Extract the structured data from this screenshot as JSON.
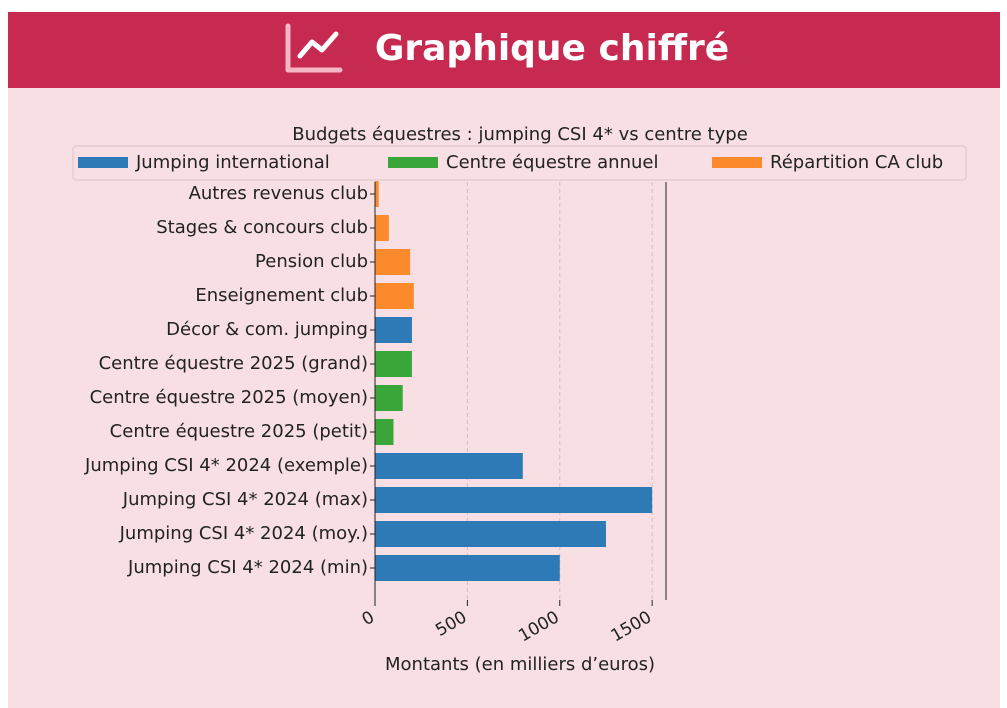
{
  "header": {
    "title": "Graphique chiffré"
  },
  "chart_data": {
    "type": "barh",
    "title": "Budgets équestres : jumping CSI 4* vs centre type",
    "xlabel": "Montants (en milliers d’euros)",
    "categories": [
      "Jumping CSI 4* 2024 (min)",
      "Jumping CSI 4* 2024 (moy.)",
      "Jumping CSI 4* 2024 (max)",
      "Jumping CSI 4* 2024 (exemple)",
      "Centre équestre 2025 (petit)",
      "Centre équestre 2025 (moyen)",
      "Centre équestre 2025 (grand)",
      "Décor & com. jumping",
      "Enseignement club",
      "Pension club",
      "Stages & concours club",
      "Autres revenus club"
    ],
    "series": [
      {
        "name": "Jumping international",
        "color": "#2e7ab6",
        "values": [
          1000,
          1250,
          1500,
          800,
          null,
          null,
          null,
          200,
          null,
          null,
          null,
          null
        ]
      },
      {
        "name": "Centre équestre annuel",
        "color": "#3aa63a",
        "values": [
          null,
          null,
          null,
          null,
          100,
          150,
          200,
          null,
          null,
          null,
          null,
          null
        ]
      },
      {
        "name": "Répartition CA club",
        "color": "#fb8a2c",
        "values": [
          null,
          null,
          null,
          null,
          null,
          null,
          null,
          null,
          210,
          190,
          75,
          20
        ]
      }
    ],
    "xlim": [
      0,
      1575
    ],
    "xticks": [
      0,
      500,
      1000,
      1500
    ],
    "grid": true,
    "legend": "top"
  }
}
